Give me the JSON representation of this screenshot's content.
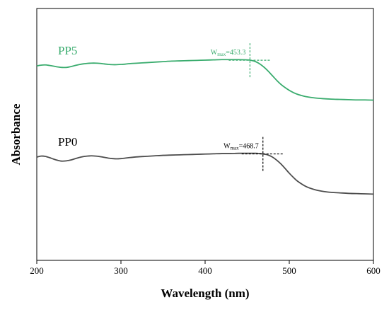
{
  "chart_data": {
    "type": "line",
    "xlabel": "Wavelength (nm)",
    "ylabel": "Absorbance",
    "xlim": [
      200,
      600
    ],
    "ylim": [
      0,
      1
    ],
    "x_ticks": [
      200,
      300,
      400,
      500,
      600
    ],
    "x_tick_labels": [
      "200",
      "300",
      "400",
      "500",
      "600"
    ],
    "y_ticks_labeled": false,
    "grid": false,
    "legend": "none",
    "series": [
      {
        "name": "PP5",
        "color": "#3aac6e",
        "x": [
          200,
          205,
          210,
          215,
          220,
          225,
          230,
          235,
          240,
          245,
          250,
          255,
          260,
          265,
          270,
          275,
          280,
          285,
          290,
          295,
          300,
          305,
          310,
          320,
          330,
          340,
          350,
          360,
          370,
          380,
          390,
          400,
          410,
          420,
          430,
          440,
          450,
          455,
          460,
          465,
          470,
          475,
          480,
          485,
          490,
          495,
          500,
          505,
          510,
          515,
          520,
          530,
          540,
          550,
          560,
          570,
          580,
          590,
          600
        ],
        "y": [
          0.772,
          0.775,
          0.776,
          0.774,
          0.771,
          0.768,
          0.766,
          0.766,
          0.769,
          0.773,
          0.777,
          0.78,
          0.782,
          0.783,
          0.783,
          0.782,
          0.78,
          0.778,
          0.777,
          0.777,
          0.778,
          0.779,
          0.781,
          0.783,
          0.785,
          0.787,
          0.789,
          0.791,
          0.792,
          0.793,
          0.794,
          0.795,
          0.796,
          0.797,
          0.797,
          0.797,
          0.796,
          0.794,
          0.789,
          0.78,
          0.767,
          0.751,
          0.733,
          0.715,
          0.699,
          0.686,
          0.675,
          0.666,
          0.659,
          0.654,
          0.65,
          0.645,
          0.642,
          0.64,
          0.639,
          0.638,
          0.637,
          0.637,
          0.636
        ],
        "label": "PP5",
        "annotation": {
          "prefix": "W",
          "sub": "max",
          "value": "=453.3",
          "x": 453.3
        }
      },
      {
        "name": "PP0",
        "color": "#4d4d4d",
        "x": [
          200,
          205,
          210,
          215,
          220,
          225,
          230,
          235,
          240,
          245,
          250,
          255,
          260,
          265,
          270,
          275,
          280,
          285,
          290,
          295,
          300,
          305,
          310,
          320,
          330,
          340,
          350,
          360,
          370,
          380,
          390,
          400,
          410,
          420,
          430,
          440,
          450,
          460,
          465,
          470,
          475,
          480,
          485,
          490,
          495,
          500,
          505,
          510,
          520,
          530,
          540,
          550,
          560,
          570,
          580,
          590,
          600
        ],
        "y": [
          0.41,
          0.414,
          0.413,
          0.408,
          0.402,
          0.397,
          0.394,
          0.395,
          0.398,
          0.403,
          0.408,
          0.412,
          0.414,
          0.415,
          0.414,
          0.412,
          0.409,
          0.406,
          0.404,
          0.403,
          0.404,
          0.406,
          0.408,
          0.411,
          0.413,
          0.415,
          0.417,
          0.418,
          0.419,
          0.42,
          0.421,
          0.422,
          0.423,
          0.424,
          0.424,
          0.425,
          0.425,
          0.425,
          0.424,
          0.422,
          0.418,
          0.41,
          0.398,
          0.383,
          0.365,
          0.346,
          0.329,
          0.314,
          0.293,
          0.281,
          0.274,
          0.27,
          0.268,
          0.266,
          0.265,
          0.264,
          0.263
        ],
        "label": "PP0",
        "annotation": {
          "prefix": "W",
          "sub": "max",
          "value": "=468.7",
          "x": 468.7
        }
      }
    ]
  }
}
